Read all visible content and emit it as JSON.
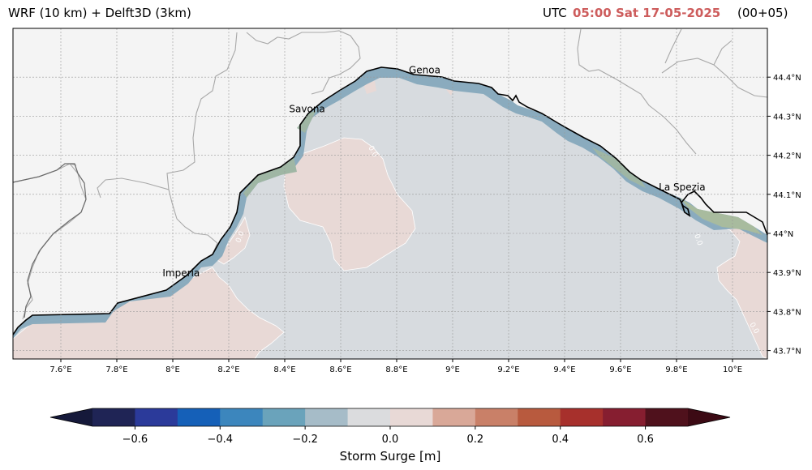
{
  "header": {
    "title": "WRF (10 km) + Delft3D (3km)",
    "utc_label": "UTC",
    "time": "05:00 Sat 17-05-2025",
    "lead": "(00+05)"
  },
  "map": {
    "x_ticks": [
      "7.6°E",
      "7.8°E",
      "8°E",
      "8.2°E",
      "8.4°E",
      "8.6°E",
      "8.8°E",
      "9°E",
      "9.2°E",
      "9.4°E",
      "9.6°E",
      "9.8°E",
      "10°E"
    ],
    "y_ticks": [
      "43.7°N",
      "43.8°N",
      "43.9°N",
      "44°N",
      "44.1°N",
      "44.2°N",
      "44.3°N",
      "44.4°N"
    ],
    "cities": [
      {
        "name": "Genoa",
        "lon": 8.9,
        "lat": 44.41
      },
      {
        "name": "Savona",
        "lon": 8.48,
        "lat": 44.31
      },
      {
        "name": "Imperia",
        "lon": 8.03,
        "lat": 43.89
      },
      {
        "name": "La Spezia",
        "lon": 9.82,
        "lat": 44.11
      }
    ],
    "contour_labels": [
      "0.0",
      "0.0",
      "0.0",
      "0.0"
    ],
    "colors": {
      "land": "#f4f4f4",
      "sea_zero": "#d7dbdf",
      "positive_light": "#e8d9d6",
      "coast_negative": "#8fb0c0",
      "coast_green": "#9fb6a4",
      "grid": "#b0b0b0"
    }
  },
  "colorbar": {
    "label": "Storm Surge [m]",
    "ticks": [
      "−0.6",
      "−0.4",
      "−0.2",
      "0.0",
      "0.2",
      "0.4",
      "0.6"
    ],
    "bins": [
      "#1f2455",
      "#2b3a9a",
      "#1560b8",
      "#3c86bd",
      "#6aa3bb",
      "#a6bcc8",
      "#dbdcde",
      "#e8d9d6",
      "#d9a898",
      "#c98068",
      "#b85a3e",
      "#a7302c",
      "#861e30",
      "#4f111c"
    ],
    "extend_low": "#15193a",
    "extend_high": "#3c0a14"
  }
}
